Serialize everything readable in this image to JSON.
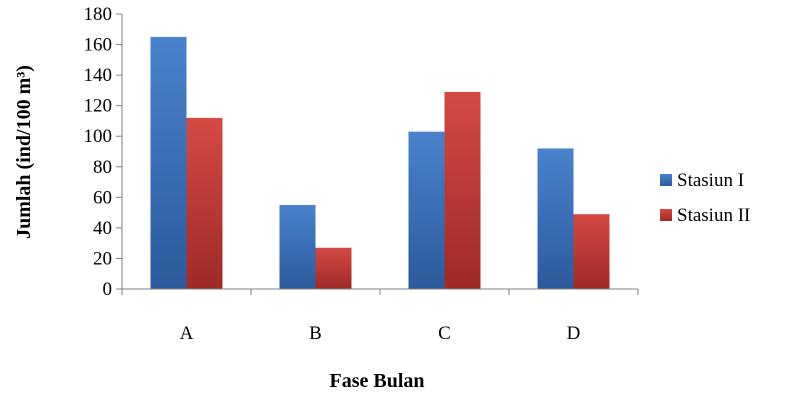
{
  "chart_data": {
    "type": "bar",
    "title": "",
    "xlabel": "Fase Bulan",
    "ylabel": "Jumlah (ind/100 m³)",
    "categories": [
      "A",
      "B",
      "C",
      "D"
    ],
    "series": [
      {
        "name": "Stasiun I",
        "values": [
          165,
          55,
          103,
          92
        ],
        "color": "#3a6fb8"
      },
      {
        "name": "Stasiun II",
        "values": [
          112,
          27,
          129,
          49
        ],
        "color": "#c03a35"
      }
    ],
    "ylim": [
      0,
      180
    ],
    "yticks": [
      "0",
      "20",
      "40",
      "60",
      "80",
      "100",
      "120",
      "140",
      "160",
      "180"
    ],
    "grid": false,
    "legend_position": "right"
  }
}
